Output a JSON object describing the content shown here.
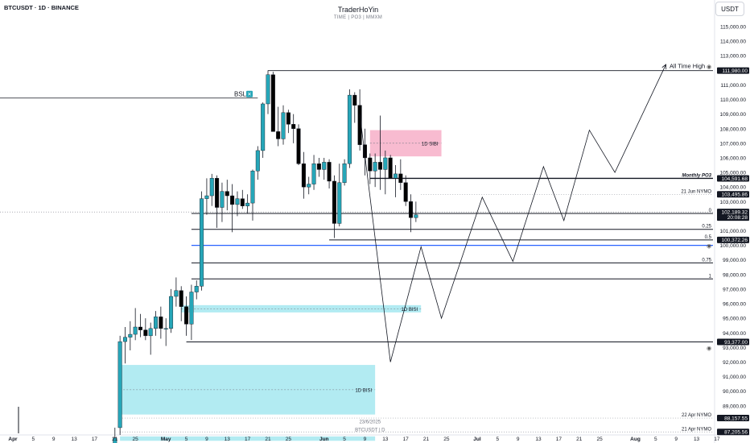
{
  "header": {
    "symbol": "BTCUSDT · 1D · BINANCE",
    "author": "TraderHoYin",
    "subtitle": "TIME | PO3 | MMXM",
    "currency_button": "USDT"
  },
  "colors": {
    "bull": "#26a6b8",
    "bear": "#000000",
    "bisi_fill": "#b2ebf2",
    "sibi_fill": "#f8bbd0",
    "level_blue": "#2962ff",
    "line": "#131722",
    "grid_tick": "#131722"
  },
  "chart_data": {
    "type": "candlestick",
    "y_axis": {
      "ylim": [
        86000,
        116000
      ],
      "ticks": [
        115000,
        114000,
        113000,
        111000,
        110000,
        109000,
        108000,
        107000,
        106000,
        105000,
        104000,
        103000,
        101000,
        100000,
        99000,
        98000,
        97000,
        96000,
        95000,
        94000,
        93000,
        92000,
        91000,
        90000,
        89000
      ],
      "tick_labels": [
        "115,000.00",
        "114,000.00",
        "113,000.00",
        "111,000.00",
        "110,000.00",
        "109,000.00",
        "108,000.00",
        "107,000.00",
        "106,000.00",
        "105,000.00",
        "104,000.00",
        "103,000.00",
        "101,000.00",
        "100,000.00",
        "99,000.00",
        "98,000.00",
        "97,000.00",
        "96,000.00",
        "95,000.00",
        "94,000.00",
        "93,000.00",
        "92,000.00",
        "91,000.00",
        "90,000.00",
        "89,000.00"
      ]
    },
    "x_axis": {
      "ticks": [
        {
          "label": "Apr",
          "day": 0,
          "bold": true
        },
        {
          "label": "5",
          "day": 4
        },
        {
          "label": "9",
          "day": 8
        },
        {
          "label": "13",
          "day": 12
        },
        {
          "label": "17",
          "day": 16
        },
        {
          "label": "21",
          "day": 20
        },
        {
          "label": "25",
          "day": 24
        },
        {
          "label": "May",
          "day": 30,
          "bold": true
        },
        {
          "label": "5",
          "day": 34
        },
        {
          "label": "9",
          "day": 38
        },
        {
          "label": "13",
          "day": 42
        },
        {
          "label": "17",
          "day": 46
        },
        {
          "label": "21",
          "day": 50
        },
        {
          "label": "25",
          "day": 54
        },
        {
          "label": "Jun",
          "day": 61,
          "bold": true
        },
        {
          "label": "5",
          "day": 65
        },
        {
          "label": "9",
          "day": 69
        },
        {
          "label": "13",
          "day": 73
        },
        {
          "label": "17",
          "day": 77
        },
        {
          "label": "21",
          "day": 81
        },
        {
          "label": "25",
          "day": 85
        },
        {
          "label": "Jul",
          "day": 91,
          "bold": true
        },
        {
          "label": "5",
          "day": 95
        },
        {
          "label": "9",
          "day": 99
        },
        {
          "label": "13",
          "day": 103
        },
        {
          "label": "17",
          "day": 107
        },
        {
          "label": "21",
          "day": 111
        },
        {
          "label": "25",
          "day": 115
        },
        {
          "label": "Aug",
          "day": 122,
          "bold": true
        },
        {
          "label": "5",
          "day": 126
        },
        {
          "label": "9",
          "day": 130
        },
        {
          "label": "13",
          "day": 134
        },
        {
          "label": "17",
          "day": 138
        }
      ]
    },
    "candles": [
      {
        "day": 20,
        "o": 85000,
        "h": 87500,
        "l": 84000,
        "c": 86800
      },
      {
        "day": 21,
        "o": 87500,
        "h": 93800,
        "l": 87000,
        "c": 93400
      },
      {
        "day": 22,
        "o": 93400,
        "h": 94400,
        "l": 91900,
        "c": 93700
      },
      {
        "day": 23,
        "o": 93700,
        "h": 94800,
        "l": 92800,
        "c": 93900
      },
      {
        "day": 24,
        "o": 93900,
        "h": 95700,
        "l": 93500,
        "c": 94400
      },
      {
        "day": 25,
        "o": 94400,
        "h": 95300,
        "l": 93700,
        "c": 94200
      },
      {
        "day": 26,
        "o": 94200,
        "h": 95000,
        "l": 93500,
        "c": 93800
      },
      {
        "day": 27,
        "o": 93800,
        "h": 94700,
        "l": 92500,
        "c": 94300
      },
      {
        "day": 28,
        "o": 94300,
        "h": 95500,
        "l": 93800,
        "c": 95100
      },
      {
        "day": 29,
        "o": 95100,
        "h": 95800,
        "l": 93600,
        "c": 94300
      },
      {
        "day": 30,
        "o": 94300,
        "h": 95000,
        "l": 93100,
        "c": 94300
      },
      {
        "day": 31,
        "o": 94300,
        "h": 97000,
        "l": 94000,
        "c": 96500
      },
      {
        "day": 32,
        "o": 96500,
        "h": 97800,
        "l": 95800,
        "c": 96900
      },
      {
        "day": 33,
        "o": 96900,
        "h": 97200,
        "l": 94800,
        "c": 95800
      },
      {
        "day": 34,
        "o": 95800,
        "h": 96500,
        "l": 93800,
        "c": 94600
      },
      {
        "day": 35,
        "o": 94600,
        "h": 97300,
        "l": 93500,
        "c": 96800
      },
      {
        "day": 36,
        "o": 96800,
        "h": 97600,
        "l": 96300,
        "c": 97200
      },
      {
        "day": 37,
        "o": 97200,
        "h": 103700,
        "l": 96900,
        "c": 103200
      },
      {
        "day": 38,
        "o": 103200,
        "h": 104600,
        "l": 102100,
        "c": 103400
      },
      {
        "day": 39,
        "o": 103400,
        "h": 104900,
        "l": 102700,
        "c": 104600
      },
      {
        "day": 40,
        "o": 104600,
        "h": 104800,
        "l": 101200,
        "c": 102600
      },
      {
        "day": 41,
        "o": 102600,
        "h": 104300,
        "l": 101600,
        "c": 103700
      },
      {
        "day": 42,
        "o": 103700,
        "h": 104500,
        "l": 102400,
        "c": 103400
      },
      {
        "day": 43,
        "o": 103400,
        "h": 104200,
        "l": 100900,
        "c": 102800
      },
      {
        "day": 44,
        "o": 102800,
        "h": 103700,
        "l": 102000,
        "c": 103200
      },
      {
        "day": 45,
        "o": 103200,
        "h": 103800,
        "l": 102500,
        "c": 102700
      },
      {
        "day": 46,
        "o": 102700,
        "h": 103500,
        "l": 102200,
        "c": 102900
      },
      {
        "day": 47,
        "o": 102900,
        "h": 105200,
        "l": 101700,
        "c": 105100
      },
      {
        "day": 48,
        "o": 105100,
        "h": 106800,
        "l": 104500,
        "c": 106500
      },
      {
        "day": 49,
        "o": 106500,
        "h": 109800,
        "l": 106000,
        "c": 109700
      },
      {
        "day": 50,
        "o": 109700,
        "h": 112000,
        "l": 109000,
        "c": 111700
      },
      {
        "day": 51,
        "o": 111700,
        "h": 111900,
        "l": 107800,
        "c": 107800
      },
      {
        "day": 52,
        "o": 107800,
        "h": 109500,
        "l": 106800,
        "c": 107300
      },
      {
        "day": 53,
        "o": 107300,
        "h": 109600,
        "l": 106900,
        "c": 109100
      },
      {
        "day": 54,
        "o": 109100,
        "h": 109300,
        "l": 107700,
        "c": 108300
      },
      {
        "day": 55,
        "o": 108300,
        "h": 109000,
        "l": 107000,
        "c": 108000
      },
      {
        "day": 56,
        "o": 108000,
        "h": 108300,
        "l": 105500,
        "c": 105600
      },
      {
        "day": 57,
        "o": 105600,
        "h": 106400,
        "l": 103200,
        "c": 104000
      },
      {
        "day": 58,
        "o": 104000,
        "h": 104700,
        "l": 103500,
        "c": 104200
      },
      {
        "day": 59,
        "o": 104200,
        "h": 106200,
        "l": 103800,
        "c": 105600
      },
      {
        "day": 60,
        "o": 105600,
        "h": 106000,
        "l": 104700,
        "c": 105200
      },
      {
        "day": 61,
        "o": 105200,
        "h": 106000,
        "l": 104500,
        "c": 105700
      },
      {
        "day": 62,
        "o": 105700,
        "h": 105900,
        "l": 103900,
        "c": 104400
      },
      {
        "day": 63,
        "o": 104400,
        "h": 104800,
        "l": 100500,
        "c": 101500
      },
      {
        "day": 64,
        "o": 101500,
        "h": 105600,
        "l": 101300,
        "c": 104300
      },
      {
        "day": 65,
        "o": 104300,
        "h": 105900,
        "l": 104100,
        "c": 105600
      },
      {
        "day": 66,
        "o": 105600,
        "h": 110700,
        "l": 105300,
        "c": 110300
      },
      {
        "day": 67,
        "o": 110300,
        "h": 110500,
        "l": 108400,
        "c": 109600
      },
      {
        "day": 68,
        "o": 109600,
        "h": 110700,
        "l": 106500,
        "c": 106900
      },
      {
        "day": 69,
        "o": 106900,
        "h": 108000,
        "l": 104800,
        "c": 106000
      },
      {
        "day": 70,
        "o": 106000,
        "h": 106300,
        "l": 104200,
        "c": 105100
      },
      {
        "day": 71,
        "o": 105100,
        "h": 106300,
        "l": 104000,
        "c": 105700
      },
      {
        "day": 72,
        "o": 105700,
        "h": 108900,
        "l": 103800,
        "c": 105200
      },
      {
        "day": 73,
        "o": 105200,
        "h": 106500,
        "l": 103500,
        "c": 106000
      },
      {
        "day": 74,
        "o": 106000,
        "h": 106200,
        "l": 104800,
        "c": 104600
      },
      {
        "day": 75,
        "o": 104600,
        "h": 105500,
        "l": 103300,
        "c": 104900
      },
      {
        "day": 76,
        "o": 104900,
        "h": 105900,
        "l": 103800,
        "c": 104300
      },
      {
        "day": 77,
        "o": 104300,
        "h": 104800,
        "l": 102700,
        "c": 103000
      },
      {
        "day": 78,
        "o": 103000,
        "h": 103500,
        "l": 100900,
        "c": 101900
      },
      {
        "day": 79,
        "o": 101900,
        "h": 103000,
        "l": 101600,
        "c": 102100
      }
    ],
    "zones": [
      {
        "kind": "bisi",
        "label": "1D BISI",
        "d0": 21,
        "d1": 71,
        "top": 91800,
        "bottom": 88400
      },
      {
        "kind": "bisi",
        "label": "1D BISI",
        "d0": 33,
        "d1": 80,
        "top": 95900,
        "bottom": 95400
      },
      {
        "kind": "bisi",
        "label": "",
        "d0": 21,
        "d1": 71,
        "top": 86900,
        "bottom": 86600
      },
      {
        "kind": "sibi",
        "label": "1D SIBI",
        "d0": 70,
        "d1": 84,
        "top": 107900,
        "bottom": 106100
      }
    ],
    "levels": [
      {
        "label": "Monthly PO3",
        "price": 104591.68,
        "style": "solid",
        "d0": 70,
        "bold": true,
        "italic": true
      },
      {
        "label": "21 Jun NYMO",
        "price": 103495.86,
        "style": "dotted",
        "d0": 80
      },
      {
        "label": "0",
        "price": 102189.32,
        "style": "solid",
        "d0": 35
      },
      {
        "label": "0.25",
        "price": 101100,
        "style": "solid",
        "d0": 35
      },
      {
        "label": "0.5",
        "price": 100372.26,
        "style": "solid",
        "d0": 62
      },
      {
        "label": "",
        "price": 100000,
        "style": "blue",
        "d0": 35
      },
      {
        "label": "0.75",
        "price": 98800,
        "style": "solid",
        "d0": 35
      },
      {
        "label": "1",
        "price": 97700,
        "style": "solid",
        "d0": 35
      },
      {
        "label": "",
        "price": 93377,
        "style": "solid",
        "d0": 34
      },
      {
        "label": "All Time High",
        "price": 111980,
        "style": "solid",
        "d0": 50
      },
      {
        "label": "22 Apr NYMO",
        "price": 88157.55,
        "style": "dotted",
        "d0": 21
      },
      {
        "label": "21 Apr NYMO",
        "price": 87205.56,
        "style": "dotted",
        "d0": 21
      },
      {
        "label": "BSL",
        "price": 110100,
        "style": "solid",
        "d0": -3
      }
    ],
    "price_tags": [
      {
        "text": "111,980.00",
        "price": 111980
      },
      {
        "text": "104,591.68",
        "price": 104591.68
      },
      {
        "text": "103,495.86",
        "price": 103495.86
      },
      {
        "text": "102,189.32",
        "price": 102289.32,
        "time": "20:08:28"
      },
      {
        "text": "100,372.26",
        "price": 100372.26
      },
      {
        "text": "93,377.00",
        "price": 93377
      },
      {
        "text": "88,157.55",
        "price": 88157.55
      },
      {
        "text": "87,205.56",
        "price": 87205.56
      }
    ],
    "projection": [
      {
        "day": 68,
        "price": 109000
      },
      {
        "day": 74,
        "price": 92000
      },
      {
        "day": 80,
        "price": 99900
      },
      {
        "day": 84,
        "price": 95000
      },
      {
        "day": 92,
        "price": 103300
      },
      {
        "day": 98,
        "price": 98900
      },
      {
        "day": 104,
        "price": 105400
      },
      {
        "day": 108,
        "price": 101700
      },
      {
        "day": 113,
        "price": 107900
      },
      {
        "day": 118,
        "price": 105000
      },
      {
        "day": 128,
        "price": 112400
      }
    ],
    "annotations": [
      {
        "text": "23/6/2025",
        "day": 70,
        "price": 87800
      },
      {
        "text": "BTCUSDT | D",
        "day": 70,
        "price": 87250
      }
    ]
  }
}
